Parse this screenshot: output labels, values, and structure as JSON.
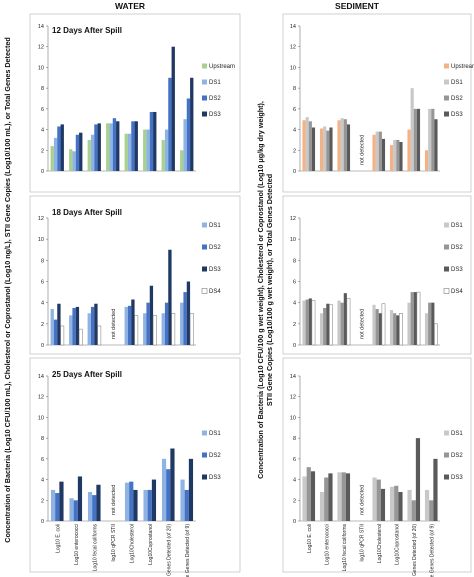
{
  "figure": {
    "columns": [
      "WATER",
      "SEDIMENT"
    ],
    "ylabels": {
      "water": "Concentration of Bacteria (Log10 CFU/100 mL), Cholesterol or Coprostanol (Log10 ng/L), STII Gene Copies (Log10/100 mL), or Total Genes Detected",
      "sediment": "Concentration of Bacteria (Log10 CFU/100 g wet weight), Cholesterol or Coprostanol (Log10 μg/kg dry weight), STII Gene Copies (Log10/100 g wet weight), or Total Genes Detected"
    },
    "not_detected_label": "not detected"
  },
  "chart_data": [
    {
      "id": "water-12",
      "type": "bar",
      "title": "12 Days After Spill",
      "ylim": [
        0,
        14
      ],
      "yticks": [
        0,
        2,
        4,
        6,
        8,
        10,
        12,
        14
      ],
      "categories": [
        "Log10 E. coli",
        "Log10 enterococci",
        "Log10 fecal coliforms",
        "log10 qPCR STII",
        "Log10Cholesterol",
        "Log10Coprostanol",
        "Total Genes Detected (of 20)",
        "Manure Genes Detected (of 9)"
      ],
      "show_categories": false,
      "legend": [
        "Upstream",
        "DS1",
        "DS2",
        "DS3"
      ],
      "colors": [
        "#a9d18e",
        "#8fb4e3",
        "#4472c4",
        "#1f3864"
      ],
      "series": [
        {
          "name": "Upstream",
          "values": [
            2.4,
            2.1,
            3.0,
            4.6,
            3.6,
            4.0,
            3.0,
            2.0
          ]
        },
        {
          "name": "DS1",
          "values": [
            3.2,
            1.9,
            3.5,
            4.6,
            3.6,
            4.0,
            4.0,
            5.0
          ]
        },
        {
          "name": "DS2",
          "values": [
            4.3,
            3.5,
            4.5,
            5.1,
            4.8,
            5.7,
            9.0,
            7.0
          ]
        },
        {
          "name": "DS3",
          "values": [
            4.5,
            3.7,
            4.6,
            4.8,
            4.8,
            5.7,
            12.0,
            9.0
          ]
        }
      ]
    },
    {
      "id": "water-18",
      "type": "bar",
      "title": "18 Days After Spill",
      "ylim": [
        0,
        12
      ],
      "yticks": [
        0,
        2,
        4,
        6,
        8,
        10,
        12
      ],
      "categories": [
        "Log10 E. coli",
        "Log10 enterococci",
        "Log10 fecal coliforms",
        "log10 qPCR STII",
        "Log10Cholesterol",
        "Log10Coprostanol",
        "Total Genes Detected (of 20)",
        "Manure Genes Detected (of 9)"
      ],
      "show_categories": false,
      "not_detected_index": 3,
      "legend": [
        "DS1",
        "DS2",
        "DS3",
        "DS4"
      ],
      "colors": [
        "#8fb4e3",
        "#4472c4",
        "#1f3864",
        "#ffffff"
      ],
      "series": [
        {
          "name": "DS1",
          "values": [
            3.4,
            2.8,
            3.0,
            null,
            3.6,
            3.0,
            3.0,
            4.0
          ]
        },
        {
          "name": "DS2",
          "values": [
            2.4,
            3.5,
            3.6,
            null,
            3.7,
            4.0,
            4.0,
            5.0
          ]
        },
        {
          "name": "DS3",
          "values": [
            3.9,
            3.6,
            3.9,
            null,
            4.3,
            5.6,
            9.0,
            6.0
          ]
        },
        {
          "name": "DS4",
          "values": [
            1.8,
            1.5,
            1.8,
            null,
            2.8,
            2.8,
            3.0,
            3.0
          ]
        }
      ]
    },
    {
      "id": "water-25",
      "type": "bar",
      "title": "25 Days After Spill",
      "ylim": [
        0,
        14
      ],
      "yticks": [
        0,
        2,
        4,
        6,
        8,
        10,
        12,
        14
      ],
      "categories": [
        "Log10 E. coli",
        "Log10 enterococci",
        "Log10 fecal coliforms",
        "log10 qPCR STII",
        "Log10Cholesterol",
        "Log10Coprostanol",
        "Total Genes Detected (of 20)",
        "Manure Genes Detected (of 9)"
      ],
      "show_categories": true,
      "not_detected_index": 3,
      "legend": [
        "DS1",
        "DS2",
        "DS3"
      ],
      "colors": [
        "#8fb4e3",
        "#4472c4",
        "#1f3864"
      ],
      "series": [
        {
          "name": "DS1",
          "values": [
            3.0,
            2.2,
            2.8,
            null,
            3.7,
            3.0,
            6.0,
            4.0
          ]
        },
        {
          "name": "DS2",
          "values": [
            2.7,
            2.0,
            2.5,
            null,
            3.8,
            3.0,
            5.0,
            3.0
          ]
        },
        {
          "name": "DS3",
          "values": [
            3.8,
            4.3,
            3.5,
            null,
            3.0,
            4.0,
            7.0,
            6.0
          ]
        }
      ]
    },
    {
      "id": "sed-12",
      "type": "bar",
      "title": "",
      "ylim": [
        0,
        14
      ],
      "yticks": [
        0,
        2,
        4,
        6,
        8,
        10,
        12,
        14
      ],
      "categories": [
        "Log10 E. coli",
        "Log10 enterococci",
        "Log10 fecal coliforms",
        "log10 qPCR STII",
        "Log10Cholesterol",
        "Log10Coprostanol",
        "Total Genes Detected (of 20)",
        "Manure Genes Detected (of 9)"
      ],
      "show_categories": false,
      "not_detected_index": 3,
      "legend": [
        "Upstream",
        "DS1",
        "DS2",
        "DS3"
      ],
      "colors": [
        "#f4b183",
        "#c8c8c8",
        "#969696",
        "#5a5a5a"
      ],
      "series": [
        {
          "name": "Upstream",
          "values": [
            4.9,
            4.1,
            4.9,
            null,
            3.5,
            2.5,
            4.0,
            2.0
          ]
        },
        {
          "name": "DS1",
          "values": [
            5.2,
            4.3,
            5.1,
            null,
            3.8,
            3.0,
            8.0,
            6.0
          ]
        },
        {
          "name": "DS2",
          "values": [
            4.8,
            3.9,
            5.0,
            null,
            3.8,
            3.0,
            6.0,
            6.0
          ]
        },
        {
          "name": "DS3",
          "values": [
            4.2,
            4.2,
            4.5,
            null,
            3.1,
            2.8,
            6.0,
            5.0
          ]
        }
      ]
    },
    {
      "id": "sed-18",
      "type": "bar",
      "title": "",
      "ylim": [
        0,
        12
      ],
      "yticks": [
        0,
        2,
        4,
        6,
        8,
        10,
        12
      ],
      "categories": [
        "Log10 E. coli",
        "Log10 enterococci",
        "Log10 fecal coliforms",
        "log10 qPCR STII",
        "Log10Cholesterol",
        "Log10Coprostanol",
        "Total Genes Detected (of 20)",
        "Manure Genes Detected (of 9)"
      ],
      "show_categories": false,
      "not_detected_index": 3,
      "legend": [
        "DS1",
        "DS2",
        "DS3",
        "DS4"
      ],
      "colors": [
        "#c8c8c8",
        "#969696",
        "#5a5a5a",
        "#ffffff"
      ],
      "series": [
        {
          "name": "DS1",
          "values": [
            4.2,
            3.0,
            4.2,
            null,
            3.8,
            3.3,
            4.0,
            3.0
          ]
        },
        {
          "name": "DS2",
          "values": [
            4.3,
            3.5,
            4.0,
            null,
            3.4,
            3.0,
            5.0,
            4.0
          ]
        },
        {
          "name": "DS3",
          "values": [
            4.4,
            3.9,
            4.9,
            null,
            3.0,
            2.8,
            5.0,
            4.0
          ]
        },
        {
          "name": "DS4",
          "values": [
            4.2,
            3.8,
            4.4,
            null,
            3.9,
            3.0,
            5.0,
            2.0
          ]
        }
      ]
    },
    {
      "id": "sed-25",
      "type": "bar",
      "title": "",
      "ylim": [
        0,
        14
      ],
      "yticks": [
        0,
        2,
        4,
        6,
        8,
        10,
        12,
        14
      ],
      "categories": [
        "Log10 E. coli",
        "Log10 enterococci",
        "Log10 fecal coliforms",
        "log10 qPCR STII",
        "Log10Cholesterol",
        "Log10Coprostanol",
        "Total Genes Detected (of 20)",
        "Manure Genes Detected (of 9)"
      ],
      "show_categories": true,
      "not_detected_index": 3,
      "legend": [
        "DS1",
        "DS2",
        "DS3"
      ],
      "colors": [
        "#c8c8c8",
        "#969696",
        "#5a5a5a"
      ],
      "series": [
        {
          "name": "DS1",
          "values": [
            4.3,
            2.8,
            4.7,
            null,
            4.2,
            3.3,
            3.0,
            3.0
          ]
        },
        {
          "name": "DS2",
          "values": [
            5.2,
            4.2,
            4.7,
            null,
            4.0,
            3.4,
            2.0,
            2.0
          ]
        },
        {
          "name": "DS3",
          "values": [
            4.8,
            4.6,
            4.6,
            null,
            3.1,
            2.8,
            8.0,
            6.0
          ]
        }
      ]
    }
  ]
}
